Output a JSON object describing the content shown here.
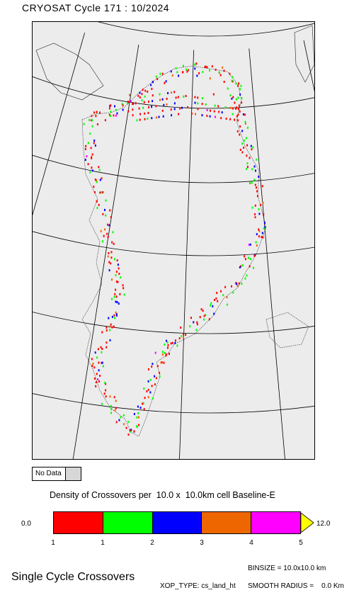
{
  "header": {
    "title": "CRYOSAT Cycle 171 : 10/2024"
  },
  "map": {
    "region": "Greenland",
    "projection": "polar stereographic",
    "background_color": "#ececec",
    "colors": [
      "#ff0000",
      "#00ff00",
      "#0000ff",
      "#ee6600",
      "#ff00ff"
    ]
  },
  "legend": {
    "no_data_label": "No Data",
    "title": "Density of Crossovers per  10.0 x  10.0km cell Baseline-E",
    "min_label": "0.0",
    "max_label": "12.0",
    "colors": [
      "#ff0000",
      "#00ff00",
      "#0000ff",
      "#ee6600",
      "#ff00ff"
    ],
    "overflow_color": "#ffff00",
    "ticks": [
      "1",
      "1",
      "2",
      "3",
      "4",
      "5"
    ]
  },
  "footer": {
    "title": "Single Cycle Crossovers",
    "binsize": "BINSIZE = 10.0x10.0 km",
    "xop_type": "XOP_TYPE: cs_land_ht",
    "smooth_radius": "SMOOTH RADIUS =    0.0 Km"
  }
}
